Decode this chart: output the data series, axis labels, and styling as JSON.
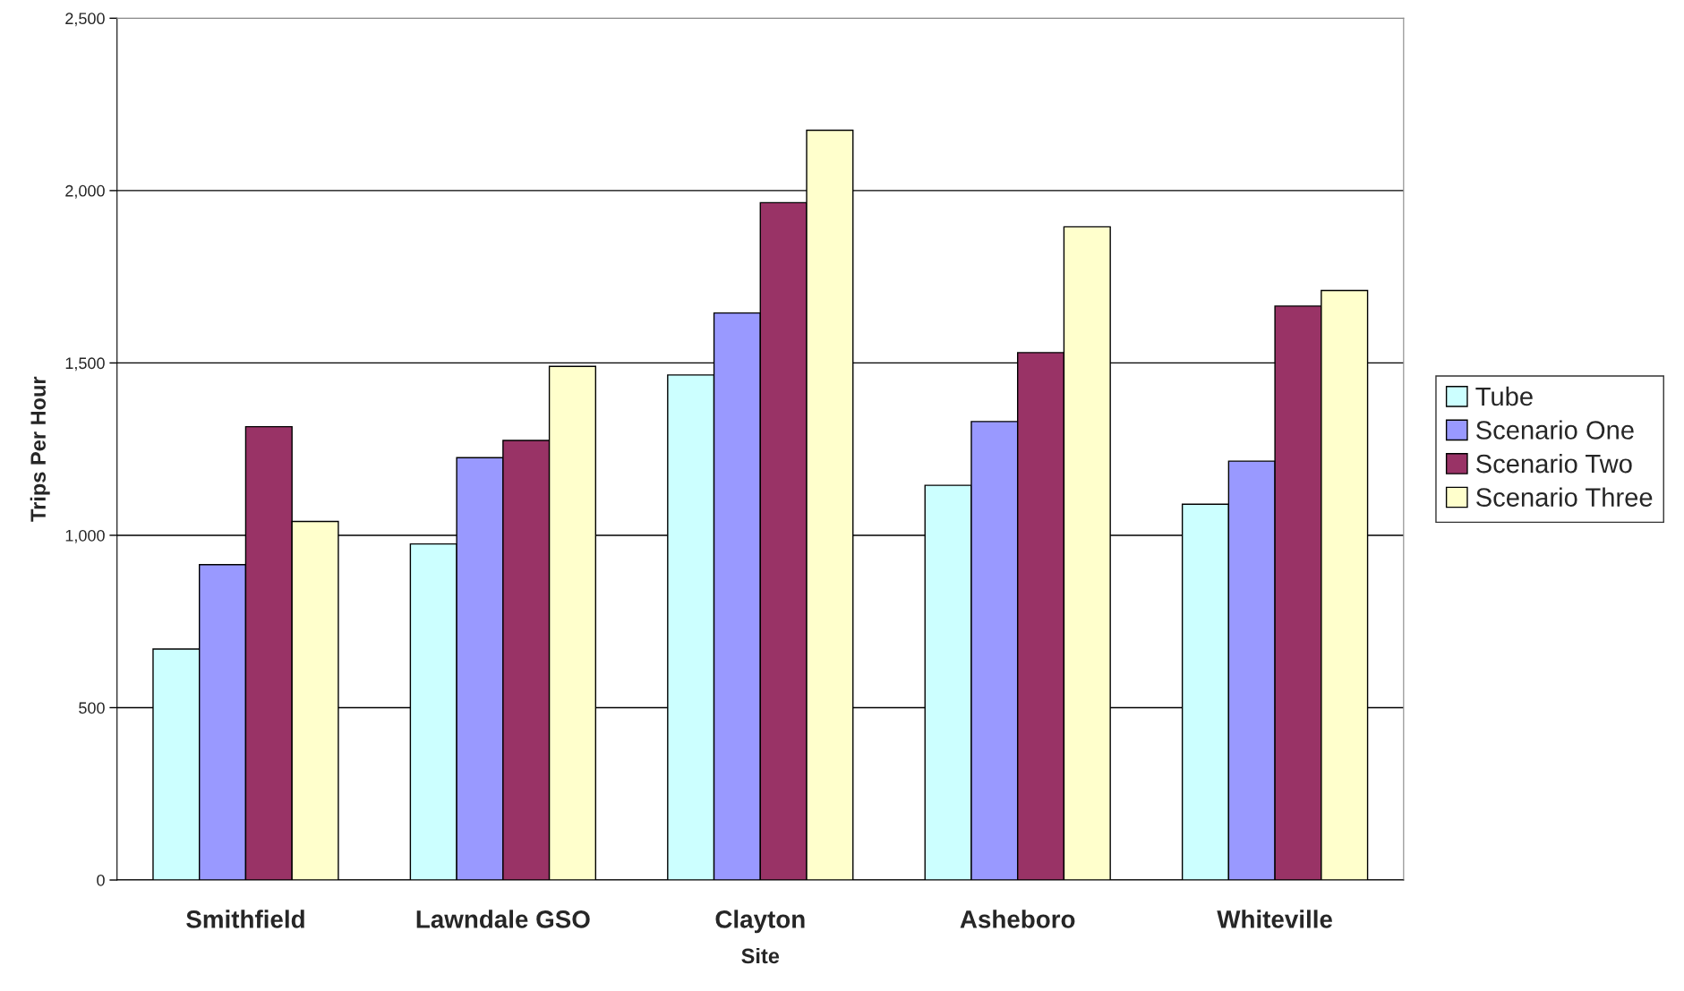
{
  "chart_data": {
    "type": "bar",
    "xlabel": "Site",
    "ylabel": "Trips Per Hour",
    "categories": [
      "Smithfield",
      "Lawndale GSO",
      "Clayton",
      "Asheboro",
      "Whiteville"
    ],
    "series": [
      {
        "name": "Tube",
        "color": "#ccffff",
        "values": [
          670,
          975,
          1465,
          1145,
          1090
        ]
      },
      {
        "name": "Scenario One",
        "color": "#9999ff",
        "values": [
          915,
          1225,
          1645,
          1330,
          1215
        ]
      },
      {
        "name": "Scenario Two",
        "color": "#993366",
        "values": [
          1315,
          1275,
          1965,
          1530,
          1665
        ]
      },
      {
        "name": "Scenario Three",
        "color": "#ffffcc",
        "values": [
          1040,
          1490,
          2175,
          1895,
          1710
        ]
      }
    ],
    "ylim": [
      0,
      2500
    ],
    "yticks": [
      0,
      500,
      {
        "value": 1000,
        "label": "1,000"
      },
      {
        "value": 1500,
        "label": "1,500"
      },
      {
        "value": 2000,
        "label": "2,000"
      },
      {
        "value": 2500,
        "label": "2,500"
      }
    ],
    "grid": "y",
    "legend": "right"
  }
}
